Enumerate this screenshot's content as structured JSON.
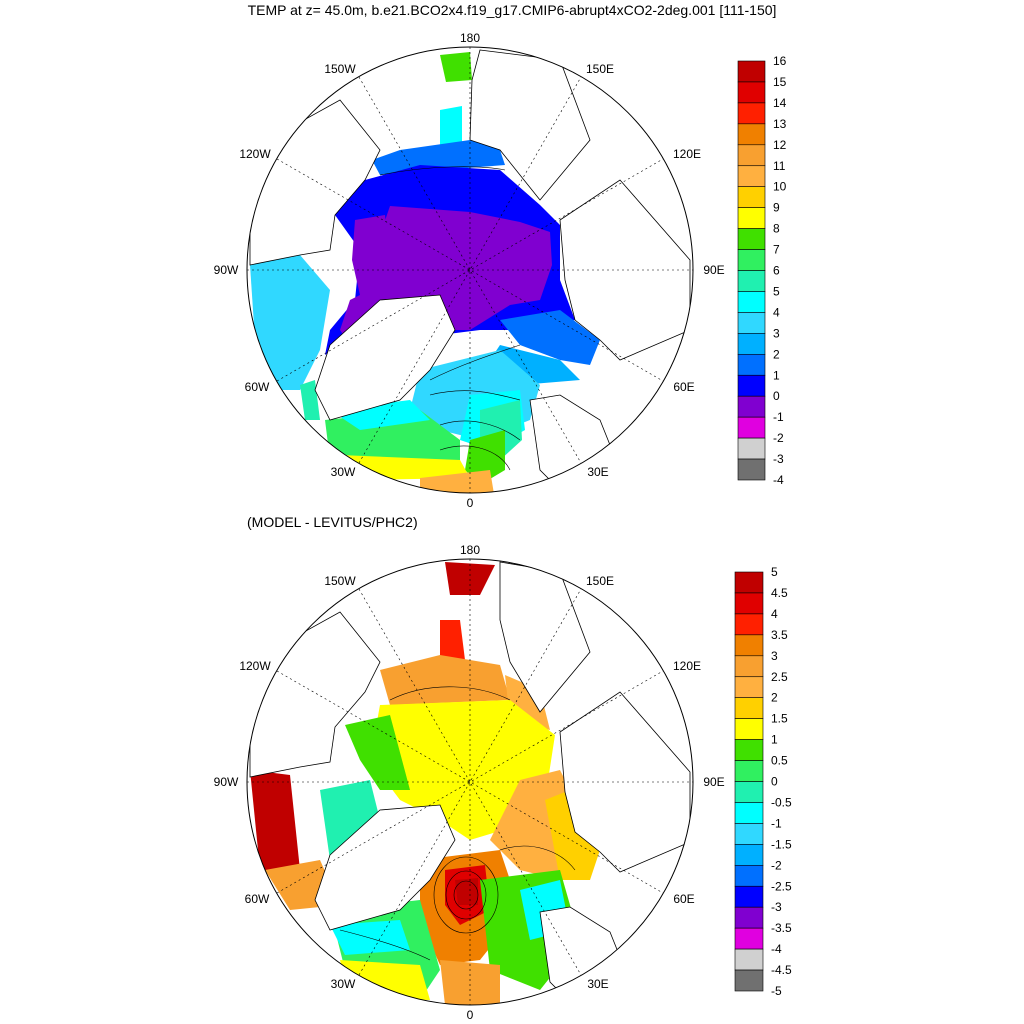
{
  "title": "TEMP at z=  45.0m, b.e21.BCO2x4.f19_g17.CMIP6-abrupt4xCO2-2deg.001 [111-150]",
  "panel2_title": "(MODEL - LEVITUS/PHC2)",
  "longitude_labels": {
    "n180": "180",
    "w150": "150W",
    "e150": "150E",
    "w120": "120W",
    "e120": "120E",
    "w90": "90W",
    "e90": "90E",
    "w60": "60W",
    "e60": "60E",
    "w30": "30W",
    "e30": "30E",
    "n0": "0"
  },
  "colorbar_top": {
    "labels": [
      "16",
      "15",
      "14",
      "13",
      "12",
      "11",
      "10",
      "9",
      "8",
      "7",
      "6",
      "5",
      "4",
      "3",
      "2",
      "1",
      "0",
      "-1",
      "-2",
      "-3",
      "-4"
    ],
    "colors": [
      "#c00000",
      "#e00000",
      "#ff2000",
      "#f08000",
      "#f8a030",
      "#ffb040",
      "#ffd000",
      "#ffff00",
      "#40e000",
      "#30f060",
      "#20f0b0",
      "#00ffff",
      "#30d8ff",
      "#00b0ff",
      "#0070ff",
      "#0000ff",
      "#8000d0",
      "#e000e0",
      "#d0d0d0",
      "#707070"
    ]
  },
  "colorbar_bottom": {
    "labels": [
      "5",
      "4.5",
      "4",
      "3.5",
      "3",
      "2.5",
      "2",
      "1.5",
      "1",
      "0.5",
      "0",
      "-0.5",
      "-1",
      "-1.5",
      "-2",
      "-2.5",
      "-3",
      "-3.5",
      "-4",
      "-4.5",
      "-5"
    ],
    "colors": [
      "#c00000",
      "#e00000",
      "#ff2000",
      "#f08000",
      "#f8a030",
      "#ffb040",
      "#ffd000",
      "#ffff00",
      "#40e000",
      "#30f060",
      "#20f0b0",
      "#00ffff",
      "#30d8ff",
      "#00b0ff",
      "#0070ff",
      "#0000ff",
      "#8000d0",
      "#e000e0",
      "#d0d0d0",
      "#707070"
    ]
  }
}
